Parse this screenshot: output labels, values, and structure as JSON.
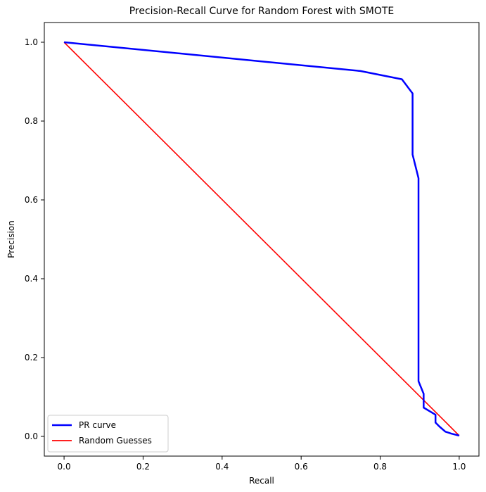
{
  "chart_data": {
    "type": "line",
    "title": "Precision-Recall Curve for Random Forest with SMOTE",
    "xlabel": "Recall",
    "ylabel": "Precision",
    "xlim": [
      -0.05,
      1.05
    ],
    "ylim": [
      -0.05,
      1.05
    ],
    "xticks": [
      0.0,
      0.2,
      0.4,
      0.6,
      0.8,
      1.0
    ],
    "yticks": [
      0.0,
      0.2,
      0.4,
      0.6,
      0.8,
      1.0
    ],
    "xtick_labels": [
      "0.0",
      "0.2",
      "0.4",
      "0.6",
      "0.8",
      "1.0"
    ],
    "ytick_labels": [
      "0.0",
      "0.2",
      "0.4",
      "0.6",
      "0.8",
      "1.0"
    ],
    "grid": false,
    "legend_position": "lower-left",
    "series": [
      {
        "name": "PR curve",
        "color": "#0000ff",
        "x": [
          0.0,
          0.75,
          0.855,
          0.882,
          0.882,
          0.897,
          0.897,
          0.897,
          0.91,
          0.91,
          0.94,
          0.94,
          0.95,
          0.965,
          0.98,
          1.0
        ],
        "y": [
          1.0,
          0.927,
          0.906,
          0.87,
          0.715,
          0.655,
          0.5,
          0.14,
          0.108,
          0.073,
          0.055,
          0.035,
          0.025,
          0.012,
          0.007,
          0.002
        ]
      },
      {
        "name": "Random Guesses",
        "color": "#ff0000",
        "x": [
          0.0,
          1.0
        ],
        "y": [
          1.0,
          0.002
        ]
      }
    ]
  }
}
